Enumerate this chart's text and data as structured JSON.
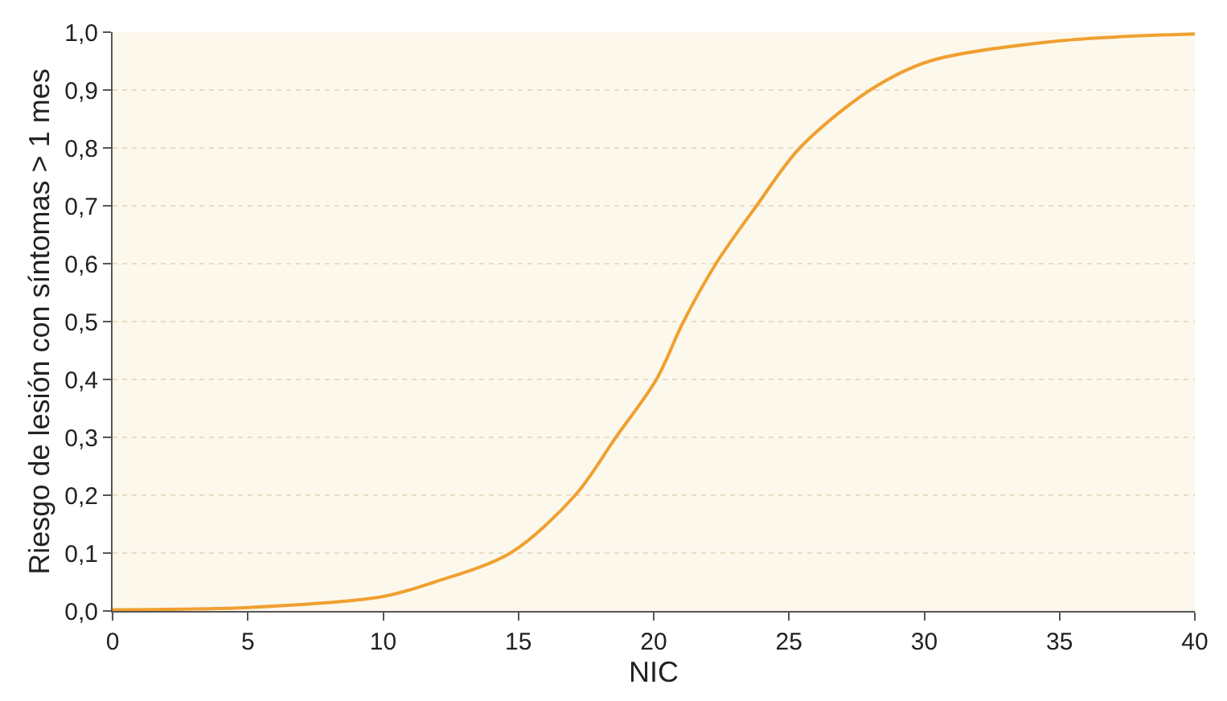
{
  "chart_data": {
    "type": "line",
    "xlabel": "NIC",
    "ylabel": "Riesgo de lesión con síntomas > 1 mes",
    "series": [
      {
        "color": "#f0a030",
        "x": [
          0,
          5,
          10,
          11.9,
          14.7,
          17.1,
          18.6,
          20.1,
          21.1,
          22.3,
          23.8,
          25.4,
          28,
          30.2,
          35,
          40
        ],
        "values": [
          0.002,
          0.006,
          0.025,
          0.05,
          0.1,
          0.2,
          0.3,
          0.4,
          0.5,
          0.6,
          0.7,
          0.8,
          0.9,
          0.95,
          0.985,
          0.997
        ]
      }
    ],
    "xlim": [
      0,
      40
    ],
    "xticks": [
      0,
      5,
      10,
      15,
      20,
      25,
      30,
      35,
      40
    ],
    "ylim": [
      0,
      1
    ],
    "yticks": [
      {
        "value": 0,
        "label": "0,0"
      },
      {
        "value": 0.1,
        "label": "0,1"
      },
      {
        "value": 0.2,
        "label": "0,2"
      },
      {
        "value": 0.3,
        "label": "0,3"
      },
      {
        "value": 0.4,
        "label": "0,4"
      },
      {
        "value": 0.5,
        "label": "0,5"
      },
      {
        "value": 0.6,
        "label": "0,6"
      },
      {
        "value": 0.7,
        "label": "0,7"
      },
      {
        "value": 0.8,
        "label": "0,8"
      },
      {
        "value": 0.9,
        "label": "0,9"
      },
      {
        "value": 1,
        "label": "1,0"
      }
    ],
    "grid": "y",
    "marker": "none",
    "line_style": "solid"
  }
}
